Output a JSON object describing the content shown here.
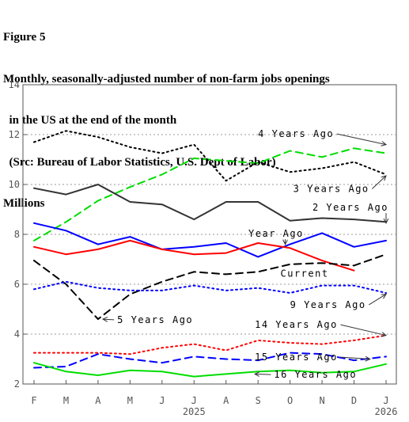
{
  "header": {
    "figure": "Figure 5",
    "title_line1": "Monthly, seasonally-adjusted number of non-farm jobs openings",
    "title_line2": "  in the US at the end of the month",
    "title_line3": "  (Src: Bureau of Labor Statistics, U.S. Dept of Labor)",
    "units": "Millions"
  },
  "chart_data": {
    "type": "line",
    "title": "Monthly, seasonally-adjusted number of non-farm jobs openings in the US at the end of the month",
    "ylabel": "Millions",
    "ylim": [
      2,
      14
    ],
    "yticks": [
      2,
      4,
      6,
      8,
      10,
      12,
      14
    ],
    "categories": [
      "F",
      "M",
      "A",
      "M",
      "J",
      "J",
      "A",
      "S",
      "O",
      "N",
      "D",
      "J"
    ],
    "year_labels": [
      {
        "index": 5,
        "text": "2025"
      },
      {
        "index": 11,
        "text": "2026"
      }
    ],
    "grid": "horizontal dotted",
    "series": [
      {
        "name": "4 Years Ago",
        "color": "#00dd00",
        "dash": "dashed",
        "label_x_index": 7.0,
        "label_y": 11.9,
        "values": [
          7.75,
          8.5,
          9.35,
          9.9,
          10.4,
          11.05,
          10.95,
          10.85,
          11.35,
          11.1,
          11.45,
          11.25
        ]
      },
      {
        "name": "3 Years Ago",
        "color": "#000000",
        "dash": "dotted",
        "label_x_index": 8.1,
        "label_y": 9.7,
        "values": [
          11.7,
          12.15,
          11.9,
          11.5,
          11.25,
          11.6,
          10.15,
          10.9,
          10.5,
          10.65,
          10.9,
          10.4
        ]
      },
      {
        "name": "2 Years Ago",
        "color": "#333333",
        "dash": "solid",
        "label_x_index": 8.7,
        "label_y": 8.95,
        "values": [
          9.85,
          9.6,
          10.0,
          9.3,
          9.2,
          8.6,
          9.3,
          9.3,
          8.55,
          8.65,
          8.6,
          8.5
        ]
      },
      {
        "name": "Year Ago",
        "color": "#0000ff",
        "dash": "solid",
        "label_x_index": 6.7,
        "label_y": 7.9,
        "values": [
          8.45,
          8.15,
          7.6,
          7.9,
          7.4,
          7.5,
          7.65,
          7.1,
          7.6,
          8.05,
          7.5,
          7.75
        ]
      },
      {
        "name": "Current",
        "color": "#ff0000",
        "dash": "solid",
        "label_x_index": null,
        "label_y": null,
        "values": [
          7.5,
          7.2,
          7.4,
          7.75,
          7.4,
          7.2,
          7.25,
          7.65,
          7.45,
          6.95,
          6.55,
          null
        ]
      },
      {
        "name": "Current",
        "color": "#000000",
        "dash": "dashed",
        "label_x_index": 7.7,
        "label_y": 6.3,
        "values": [
          6.95,
          6.0,
          4.6,
          5.6,
          6.1,
          6.5,
          6.4,
          6.5,
          6.8,
          6.85,
          6.75,
          7.2
        ]
      },
      {
        "name": "9 Years Ago",
        "color": "#0000ff",
        "dash": "dotted",
        "label_x_index": 8.0,
        "label_y": 5.05,
        "values": [
          5.8,
          6.1,
          5.85,
          5.75,
          5.75,
          5.95,
          5.75,
          5.85,
          5.65,
          5.95,
          5.95,
          5.65
        ]
      },
      {
        "name": "5 Years Ago",
        "color": "#000000",
        "dash": "dashed",
        "label_x_index": 2.6,
        "label_y": 4.45,
        "values": [
          null,
          null,
          null,
          null,
          null,
          null,
          null,
          null,
          null,
          null,
          null,
          null
        ]
      },
      {
        "name": "14 Years Ago",
        "color": "#ff0000",
        "dash": "dotted",
        "label_x_index": 6.9,
        "label_y": 4.25,
        "values": [
          3.25,
          3.25,
          3.25,
          3.2,
          3.45,
          3.6,
          3.35,
          3.75,
          3.65,
          3.6,
          3.75,
          3.95
        ]
      },
      {
        "name": "15 Years Ago",
        "color": "#0000ff",
        "dash": "dashed",
        "label_x_index": 6.9,
        "label_y": 2.95,
        "values": [
          2.65,
          2.7,
          3.2,
          3.0,
          2.85,
          3.1,
          3.0,
          2.95,
          3.25,
          3.2,
          2.95,
          3.1
        ]
      },
      {
        "name": "16 Years Ago",
        "color": "#00dd00",
        "dash": "solid",
        "label_x_index": 7.5,
        "label_y": 2.25,
        "values": [
          2.85,
          2.5,
          2.35,
          2.55,
          2.5,
          2.3,
          2.4,
          2.5,
          2.55,
          2.45,
          2.5,
          2.8
        ]
      }
    ]
  }
}
